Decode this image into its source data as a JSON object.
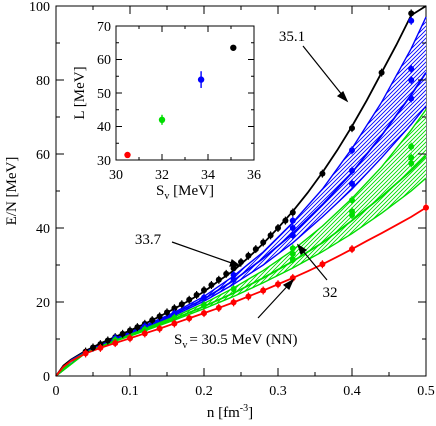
{
  "chart_data": [
    {
      "type": "line",
      "xlabel": "n [fm",
      "xlabel_exp": "-3",
      "xlabel_end": "]",
      "ylabel": "E/N [MeV]",
      "xlim": [
        0,
        0.5
      ],
      "ylim": [
        0,
        100
      ],
      "xticks": [
        "0",
        "0.1",
        "0.2",
        "0.3",
        "0.4",
        "0.5"
      ],
      "yticks": [
        "0",
        "20",
        "40",
        "60",
        "80",
        "100"
      ],
      "grid": false,
      "colors": {
        "black": "#000000",
        "blue": "#0000ff",
        "green": "#00dd00",
        "red": "#ff0000"
      },
      "series": [
        {
          "name": "35.1",
          "color": "#000000",
          "curve": [
            [
              0.0,
              0.0
            ],
            [
              0.01,
              2.8
            ],
            [
              0.02,
              4.4
            ],
            [
              0.04,
              6.8
            ],
            [
              0.06,
              8.8
            ],
            [
              0.08,
              10.6
            ],
            [
              0.1,
              12.3
            ],
            [
              0.12,
              14.1
            ],
            [
              0.14,
              16.1
            ],
            [
              0.16,
              18.2
            ],
            [
              0.18,
              20.4
            ],
            [
              0.2,
              22.8
            ],
            [
              0.22,
              25.7
            ],
            [
              0.24,
              28.5
            ],
            [
              0.26,
              32.0
            ],
            [
              0.28,
              35.8
            ],
            [
              0.3,
              40.0
            ],
            [
              0.32,
              44.5
            ],
            [
              0.34,
              49.5
            ],
            [
              0.36,
              55.0
            ],
            [
              0.38,
              61.0
            ],
            [
              0.4,
              67.5
            ],
            [
              0.42,
              74.5
            ],
            [
              0.44,
              82.0
            ],
            [
              0.46,
              89.5
            ],
            [
              0.48,
              97.5
            ],
            [
              0.5,
              100.0
            ]
          ],
          "points": [
            [
              0.04,
              6.6
            ],
            [
              0.05,
              7.7
            ],
            [
              0.06,
              8.6
            ],
            [
              0.07,
              9.6
            ],
            [
              0.08,
              10.5
            ],
            [
              0.09,
              11.4
            ],
            [
              0.1,
              12.3
            ],
            [
              0.11,
              13.2
            ],
            [
              0.12,
              14.1
            ],
            [
              0.13,
              15.1
            ],
            [
              0.14,
              16.1
            ],
            [
              0.15,
              17.2
            ],
            [
              0.16,
              18.3
            ],
            [
              0.17,
              19.4
            ],
            [
              0.18,
              20.6
            ],
            [
              0.19,
              21.9
            ],
            [
              0.2,
              23.2
            ],
            [
              0.21,
              24.6
            ],
            [
              0.22,
              26.0
            ],
            [
              0.23,
              27.6
            ],
            [
              0.24,
              29.1
            ],
            [
              0.25,
              30.8
            ],
            [
              0.26,
              32.5
            ],
            [
              0.27,
              34.3
            ],
            [
              0.28,
              36.1
            ],
            [
              0.29,
              38.0
            ],
            [
              0.3,
              40.0
            ],
            [
              0.31,
              42.0
            ],
            [
              0.32,
              44.2
            ],
            [
              0.36,
              54.7
            ],
            [
              0.4,
              67.0
            ],
            [
              0.44,
              82.0
            ],
            [
              0.48,
              98.0
            ]
          ]
        },
        {
          "name": "33.7",
          "color": "#0000ff",
          "curve": [
            [
              0.0,
              0.0
            ],
            [
              0.02,
              4.2
            ],
            [
              0.04,
              6.5
            ],
            [
              0.08,
              10.0
            ],
            [
              0.12,
              13.3
            ],
            [
              0.16,
              16.8
            ],
            [
              0.2,
              20.8
            ],
            [
              0.24,
              25.8
            ],
            [
              0.28,
              31.8
            ],
            [
              0.32,
              38.5
            ],
            [
              0.36,
              46.3
            ],
            [
              0.4,
              55.0
            ],
            [
              0.44,
              65.0
            ],
            [
              0.48,
              76.0
            ],
            [
              0.5,
              82.0
            ]
          ],
          "band_upper": [
            [
              0.0,
              0.0
            ],
            [
              0.04,
              6.6
            ],
            [
              0.08,
              10.2
            ],
            [
              0.12,
              13.6
            ],
            [
              0.16,
              17.2
            ],
            [
              0.2,
              21.5
            ],
            [
              0.24,
              27.0
            ],
            [
              0.28,
              33.5
            ],
            [
              0.32,
              41.5
            ],
            [
              0.36,
              50.5
            ],
            [
              0.4,
              61.5
            ],
            [
              0.44,
              74.0
            ],
            [
              0.48,
              88.5
            ],
            [
              0.5,
              97.0
            ]
          ],
          "band_lower": [
            [
              0.0,
              0.0
            ],
            [
              0.04,
              6.4
            ],
            [
              0.08,
              9.8
            ],
            [
              0.12,
              13.0
            ],
            [
              0.16,
              16.4
            ],
            [
              0.2,
              20.2
            ],
            [
              0.24,
              24.8
            ],
            [
              0.28,
              30.0
            ],
            [
              0.32,
              36.0
            ],
            [
              0.36,
              43.0
            ],
            [
              0.4,
              50.5
            ],
            [
              0.44,
              59.0
            ],
            [
              0.48,
              68.0
            ],
            [
              0.5,
              73.0
            ]
          ],
          "points": [
            [
              0.08,
              10.2
            ],
            [
              0.12,
              13.4
            ],
            [
              0.16,
              16.9
            ],
            [
              0.2,
              21.2
            ],
            [
              0.24,
              27.3
            ],
            [
              0.24,
              26.0
            ],
            [
              0.32,
              42.0
            ],
            [
              0.32,
              40.0
            ],
            [
              0.32,
              38.0
            ],
            [
              0.4,
              61.0
            ],
            [
              0.4,
              55.5
            ],
            [
              0.4,
              52.0
            ],
            [
              0.48,
              96.0
            ],
            [
              0.48,
              83.0
            ],
            [
              0.48,
              80.0
            ],
            [
              0.48,
              75.0
            ]
          ]
        },
        {
          "name": "32",
          "color": "#00dd00",
          "curve": [
            [
              0.0,
              0.0
            ],
            [
              0.02,
              4.0
            ],
            [
              0.04,
              6.3
            ],
            [
              0.08,
              9.6
            ],
            [
              0.12,
              12.5
            ],
            [
              0.16,
              15.5
            ],
            [
              0.2,
              18.8
            ],
            [
              0.24,
              22.4
            ],
            [
              0.28,
              26.5
            ],
            [
              0.32,
              31.0
            ],
            [
              0.36,
              36.0
            ],
            [
              0.4,
              42.0
            ],
            [
              0.44,
              48.5
            ],
            [
              0.48,
              55.5
            ],
            [
              0.5,
              59.5
            ]
          ],
          "band_upper": [
            [
              0.0,
              0.0
            ],
            [
              0.04,
              6.4
            ],
            [
              0.08,
              9.8
            ],
            [
              0.12,
              12.8
            ],
            [
              0.16,
              16.0
            ],
            [
              0.2,
              19.6
            ],
            [
              0.24,
              23.8
            ],
            [
              0.28,
              28.5
            ],
            [
              0.32,
              34.0
            ],
            [
              0.36,
              40.5
            ],
            [
              0.4,
              48.0
            ],
            [
              0.44,
              56.5
            ],
            [
              0.48,
              66.5
            ],
            [
              0.5,
              72.0
            ]
          ],
          "band_lower": [
            [
              0.0,
              0.0
            ],
            [
              0.04,
              6.2
            ],
            [
              0.08,
              9.4
            ],
            [
              0.12,
              12.2
            ],
            [
              0.16,
              15.1
            ],
            [
              0.2,
              18.2
            ],
            [
              0.24,
              21.5
            ],
            [
              0.28,
              25.2
            ],
            [
              0.32,
              29.2
            ],
            [
              0.36,
              33.6
            ],
            [
              0.4,
              38.5
            ],
            [
              0.44,
              44.0
            ],
            [
              0.48,
              50.0
            ],
            [
              0.5,
              53.5
            ]
          ],
          "points": [
            [
              0.08,
              9.7
            ],
            [
              0.12,
              12.6
            ],
            [
              0.16,
              15.7
            ],
            [
              0.2,
              19.2
            ],
            [
              0.24,
              23.5
            ],
            [
              0.32,
              34.5
            ],
            [
              0.32,
              33.0
            ],
            [
              0.32,
              31.5
            ],
            [
              0.4,
              47.5
            ],
            [
              0.4,
              44.5
            ],
            [
              0.4,
              43.5
            ],
            [
              0.48,
              62.0
            ],
            [
              0.48,
              59.0
            ],
            [
              0.48,
              57.5
            ]
          ]
        },
        {
          "name": "S_v = 30.5 MeV (NN)",
          "color": "#ff0000",
          "curve": [
            [
              0.0,
              0.0
            ],
            [
              0.01,
              2.5
            ],
            [
              0.02,
              4.0
            ],
            [
              0.04,
              6.1
            ],
            [
              0.06,
              7.6
            ],
            [
              0.08,
              8.9
            ],
            [
              0.1,
              10.2
            ],
            [
              0.12,
              11.5
            ],
            [
              0.14,
              12.8
            ],
            [
              0.16,
              14.2
            ],
            [
              0.18,
              15.6
            ],
            [
              0.2,
              17.0
            ],
            [
              0.22,
              18.4
            ],
            [
              0.24,
              19.9
            ],
            [
              0.26,
              21.5
            ],
            [
              0.28,
              23.1
            ],
            [
              0.3,
              24.8
            ],
            [
              0.32,
              26.5
            ],
            [
              0.34,
              28.3
            ],
            [
              0.36,
              30.2
            ],
            [
              0.38,
              32.2
            ],
            [
              0.4,
              34.3
            ],
            [
              0.42,
              36.5
            ],
            [
              0.44,
              38.6
            ],
            [
              0.46,
              40.8
            ],
            [
              0.48,
              43.0
            ],
            [
              0.5,
              45.5
            ]
          ],
          "points": [
            [
              0.04,
              6.1
            ],
            [
              0.06,
              7.6
            ],
            [
              0.08,
              8.9
            ],
            [
              0.1,
              10.2
            ],
            [
              0.12,
              11.5
            ],
            [
              0.14,
              12.8
            ],
            [
              0.16,
              14.2
            ],
            [
              0.18,
              15.6
            ],
            [
              0.2,
              17.0
            ],
            [
              0.22,
              18.4
            ],
            [
              0.24,
              19.9
            ],
            [
              0.26,
              21.5
            ],
            [
              0.28,
              23.1
            ],
            [
              0.3,
              24.8
            ],
            [
              0.32,
              26.5
            ],
            [
              0.36,
              30.2
            ],
            [
              0.4,
              34.3
            ],
            [
              0.5,
              45.5
            ]
          ]
        }
      ],
      "annotations": {
        "label_351": "35.1",
        "label_337": "33.7",
        "label_32": "32",
        "label_nn_prefix": "S",
        "label_nn_sub": "v",
        "label_nn_rest": "= 30.5 MeV (NN)"
      }
    },
    {
      "type": "scatter",
      "xlabel": "S",
      "xlabel_sub": "v",
      "xlabel_rest": " [MeV]",
      "ylabel": "L [MeV]",
      "xlim": [
        30,
        36
      ],
      "ylim": [
        30,
        70
      ],
      "xticks": [
        "30",
        "32",
        "34",
        "36"
      ],
      "yticks": [
        "30",
        "40",
        "50",
        "60",
        "70"
      ],
      "points": [
        {
          "x": 30.5,
          "y": 31.5,
          "err": 0,
          "color": "#ff0000"
        },
        {
          "x": 32.0,
          "y": 42.0,
          "err": 1.5,
          "color": "#00dd00"
        },
        {
          "x": 33.7,
          "y": 54.0,
          "err": 2.5,
          "color": "#0000ff"
        },
        {
          "x": 35.1,
          "y": 63.5,
          "err": 0,
          "color": "#000000"
        }
      ]
    }
  ]
}
